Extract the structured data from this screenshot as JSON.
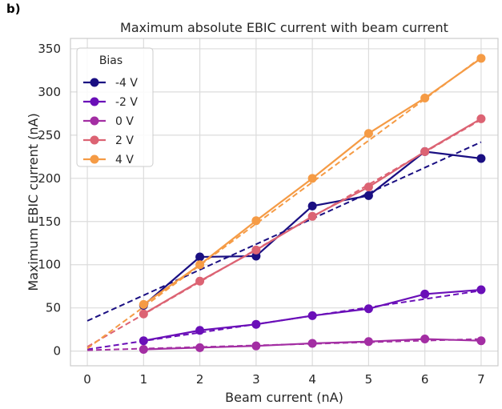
{
  "panel_label": "b)",
  "chart_data": {
    "type": "line",
    "title": "Maximum absolute EBIC current with beam current",
    "xlabel": "Beam current (nA)",
    "ylabel": "Maximum EBIC current (nA)",
    "xlim": [
      -0.3,
      7.3
    ],
    "ylim": [
      -17,
      362
    ],
    "xticks": [
      0,
      1,
      2,
      3,
      4,
      5,
      6,
      7
    ],
    "yticks": [
      0,
      50,
      100,
      150,
      200,
      250,
      300,
      350
    ],
    "grid": true,
    "legend": {
      "title": "Bias",
      "placement": "top-left"
    },
    "x": [
      1,
      2,
      3,
      4,
      5,
      6,
      7
    ],
    "series": [
      {
        "name": "-4 V",
        "color": "#1a0f82",
        "values": [
          53,
          109,
          110,
          168,
          180,
          231,
          223
        ],
        "fit": [
          [
            0,
            35
          ],
          [
            7,
            242
          ]
        ]
      },
      {
        "name": "-2 V",
        "color": "#6a0fb8",
        "values": [
          12,
          24,
          31,
          41,
          49,
          66,
          71
        ],
        "fit": [
          [
            0,
            2
          ],
          [
            7,
            70
          ]
        ]
      },
      {
        "name": "0 V",
        "color": "#a32ea3",
        "values": [
          2,
          4,
          6,
          9,
          11,
          14,
          12
        ],
        "fit": [
          [
            0,
            1
          ],
          [
            7,
            14
          ]
        ]
      },
      {
        "name": "2 V",
        "color": "#dc6373",
        "values": [
          43,
          81,
          117,
          156,
          190,
          231,
          269
        ],
        "fit": [
          [
            0,
            5
          ],
          [
            7,
            268
          ]
        ]
      },
      {
        "name": "4 V",
        "color": "#f59b45",
        "values": [
          54,
          100,
          151,
          200,
          252,
          293,
          339
        ],
        "fit": [
          [
            0,
            3
          ],
          [
            7,
            340
          ]
        ]
      }
    ]
  }
}
